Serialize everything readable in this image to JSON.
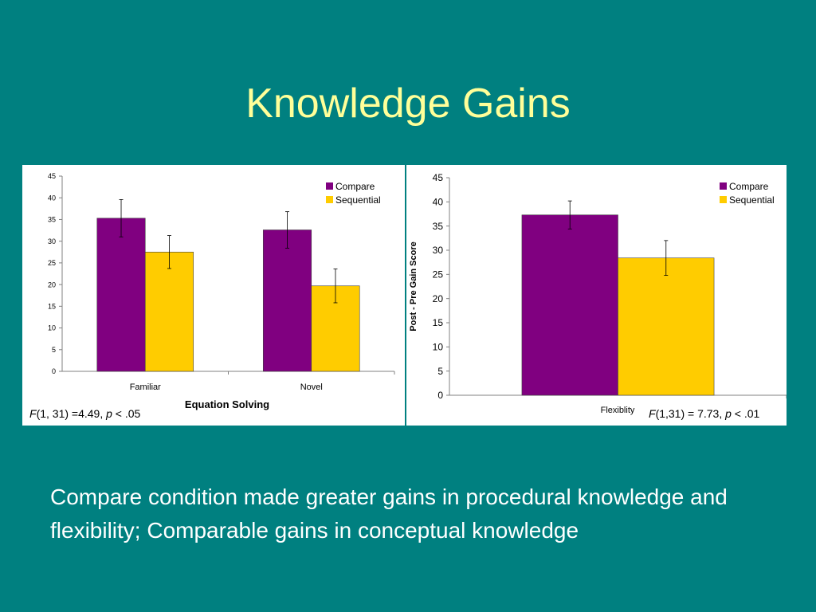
{
  "slide": {
    "title": "Knowledge Gains",
    "body": "Compare condition made greater gains in procedural knowledge and flexibility; Comparable gains in conceptual knowledge"
  },
  "colors": {
    "background": "#008080",
    "title": "#FFFF99",
    "compare": "#800080",
    "sequential": "#FFCC00"
  },
  "chart_data": [
    {
      "type": "bar",
      "title": "",
      "xlabel": "Equation Solving",
      "ylabel": "",
      "ylim": [
        0,
        45
      ],
      "yticks": [
        0,
        5,
        10,
        15,
        20,
        25,
        30,
        35,
        40,
        45
      ],
      "categories": [
        "Familiar",
        "Novel"
      ],
      "series": [
        {
          "name": "Compare",
          "color": "#800080",
          "values": [
            35.3,
            32.6
          ],
          "error": [
            4.3,
            4.2
          ]
        },
        {
          "name": "Sequential",
          "color": "#FFCC00",
          "values": [
            27.5,
            19.7
          ],
          "error": [
            3.8,
            3.9
          ]
        }
      ],
      "legend": "top-right",
      "grid": false,
      "stat": {
        "F_label": "F",
        "text": "(1, 31) =4.49, ",
        "p_label": "p",
        "p_text": " < .05"
      }
    },
    {
      "type": "bar",
      "title": "",
      "xlabel": "",
      "ylabel": "Post - Pre Gain Score",
      "ylim": [
        0,
        45
      ],
      "yticks": [
        0,
        5,
        10,
        15,
        20,
        25,
        30,
        35,
        40,
        45
      ],
      "categories": [
        "Flexiblity"
      ],
      "series": [
        {
          "name": "Compare",
          "color": "#800080",
          "values": [
            37.3
          ],
          "error": [
            2.9
          ]
        },
        {
          "name": "Sequential",
          "color": "#FFCC00",
          "values": [
            28.4
          ],
          "error": [
            3.6
          ]
        }
      ],
      "legend": "top-right",
      "grid": false,
      "stat": {
        "F_label": "F",
        "text": "(1,31) = 7.73, ",
        "p_label": "p",
        "p_text": " < .01"
      }
    }
  ]
}
